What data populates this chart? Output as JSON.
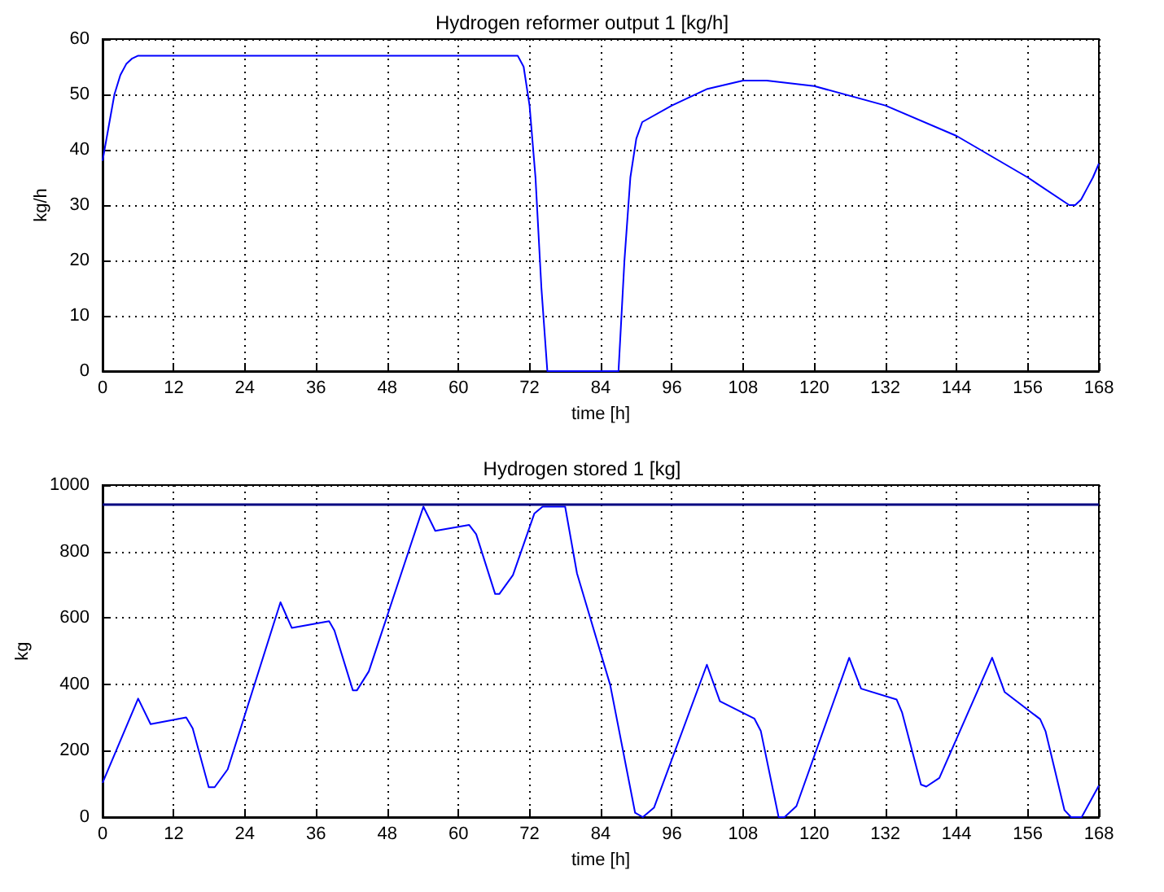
{
  "chart_data": [
    {
      "type": "line",
      "title": "Hydrogen reformer output 1 [kg/h]",
      "xlabel": "time [h]",
      "ylabel": "kg/h",
      "xlim": [
        0,
        168
      ],
      "xticks": [
        0,
        12,
        24,
        36,
        48,
        60,
        72,
        84,
        96,
        108,
        120,
        132,
        144,
        156,
        168
      ],
      "ylim": [
        0,
        60
      ],
      "yticks": [
        0,
        10,
        20,
        30,
        40,
        50,
        60
      ],
      "grid": true,
      "marker": "none",
      "series": [
        {
          "color": "#0000ff",
          "x": [
            0,
            1,
            2,
            3,
            4,
            5,
            6,
            70,
            71,
            72,
            73,
            74,
            75,
            87,
            88,
            89,
            90,
            91,
            96,
            102,
            108,
            112,
            120,
            132,
            144,
            156,
            163,
            164,
            165,
            166,
            167,
            168
          ],
          "values": [
            38,
            44,
            50,
            53.5,
            55.5,
            56.5,
            57,
            57,
            55,
            48,
            35,
            15,
            0,
            0,
            20,
            35,
            42,
            45,
            48,
            51,
            52.5,
            52.5,
            51.5,
            48,
            42.5,
            35,
            30,
            30,
            31,
            33,
            35,
            37.5
          ]
        }
      ]
    },
    {
      "type": "line",
      "title": "Hydrogen stored 1 [kg]",
      "xlabel": "time [h]",
      "ylabel": "kg",
      "xlim": [
        0,
        168
      ],
      "xticks": [
        0,
        12,
        24,
        36,
        48,
        60,
        72,
        84,
        96,
        108,
        120,
        132,
        144,
        156,
        168
      ],
      "ylim": [
        0,
        1000
      ],
      "yticks": [
        0,
        200,
        400,
        600,
        800,
        1000
      ],
      "grid": true,
      "marker": "none",
      "ref_lines": [
        {
          "axis": "y",
          "value": 940,
          "color": "#000080"
        }
      ],
      "series": [
        {
          "color": "#0000ff",
          "x": [
            0,
            6,
            8.1,
            14.1,
            15.2,
            17.9,
            18.9,
            21.1,
            30,
            31.9,
            38.2,
            39.1,
            42.2,
            42.9,
            44.9,
            54.1,
            56.1,
            61.8,
            63,
            66.2,
            66.9,
            69.2,
            72.8,
            74.2,
            78,
            80,
            85.6,
            89.8,
            91.1,
            93,
            101.9,
            104.1,
            109.9,
            111,
            114,
            115,
            117,
            125.9,
            127.9,
            133.9,
            134.8,
            138,
            138.9,
            141.1,
            150,
            152.1,
            158.1,
            159,
            162.2,
            163.3,
            165.1,
            168
          ],
          "values": [
            103,
            357,
            280,
            300,
            267,
            90,
            90,
            144,
            647,
            570,
            590,
            562,
            382,
            382,
            439,
            935,
            862,
            880,
            852,
            672,
            672,
            729,
            914,
            935,
            935,
            734,
            398,
            13,
            0,
            29,
            459,
            349,
            297,
            259,
            0,
            0,
            33,
            480,
            387,
            354,
            316,
            98,
            92,
            118,
            480,
            377,
            295,
            259,
            21,
            0,
            0,
            95
          ]
        }
      ]
    }
  ]
}
